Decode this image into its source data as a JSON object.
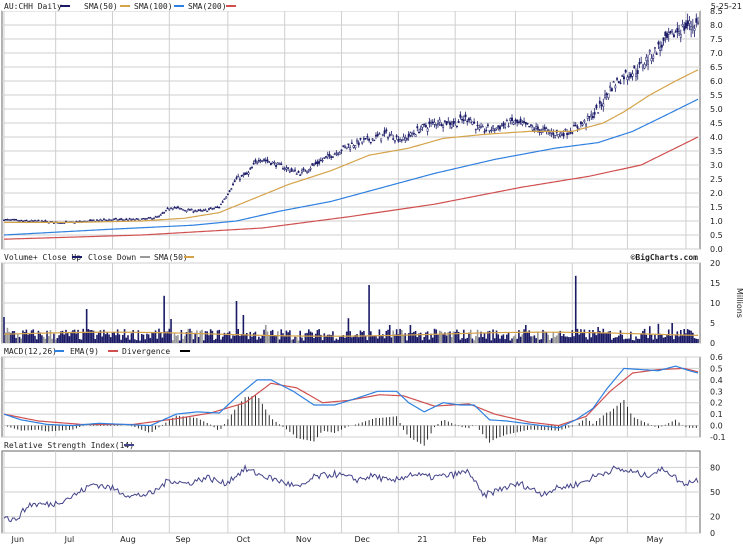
{
  "chart_data": [
    {
      "type": "line",
      "panel": "price",
      "title": "AU:CHH Daily",
      "legend": [
        {
          "name": "AU:CHH Daily",
          "color": "#1a1a66"
        },
        {
          "name": "SMA(50)",
          "color": "#d4a349"
        },
        {
          "name": "SMA(100)",
          "color": "#2f80e0"
        },
        {
          "name": "SMA(200)",
          "color": "#d05050"
        }
      ],
      "date_label": "5-25-21",
      "logo": "©BigCharts.com",
      "ylim": [
        0,
        8.5
      ],
      "yticks": [
        "0.0",
        "0.5",
        "1.0",
        "1.5",
        "2.0",
        "2.5",
        "3.0",
        "3.5",
        "4.0",
        "4.5",
        "5.0",
        "5.5",
        "6.0",
        "6.5",
        "7.0",
        "7.5",
        "8.0",
        "8.5"
      ],
      "x_months": [
        "Jun",
        "Jul",
        "Aug",
        "Sep",
        "Oct",
        "Nov",
        "Dec",
        "21",
        "Feb",
        "Mar",
        "Apr",
        "May"
      ],
      "price_anchors": [
        [
          0,
          1.05
        ],
        [
          10,
          1.0
        ],
        [
          20,
          1.0
        ],
        [
          30,
          0.95
        ],
        [
          40,
          0.95
        ],
        [
          50,
          1.0
        ],
        [
          60,
          1.05
        ],
        [
          70,
          1.05
        ],
        [
          80,
          1.05
        ],
        [
          90,
          1.15
        ],
        [
          97,
          1.5
        ],
        [
          105,
          1.4
        ],
        [
          115,
          1.35
        ],
        [
          125,
          1.5
        ],
        [
          135,
          2.5
        ],
        [
          142,
          2.7
        ],
        [
          148,
          3.25
        ],
        [
          155,
          3.1
        ],
        [
          163,
          2.9
        ],
        [
          172,
          2.7
        ],
        [
          180,
          3.0
        ],
        [
          190,
          3.35
        ],
        [
          200,
          3.7
        ],
        [
          212,
          3.9
        ],
        [
          222,
          4.1
        ],
        [
          232,
          3.9
        ],
        [
          242,
          4.3
        ],
        [
          252,
          4.55
        ],
        [
          262,
          4.5
        ],
        [
          270,
          4.7
        ],
        [
          276,
          4.25
        ],
        [
          285,
          4.3
        ],
        [
          295,
          4.55
        ],
        [
          305,
          4.35
        ],
        [
          315,
          4.2
        ],
        [
          322,
          4.1
        ],
        [
          330,
          4.25
        ],
        [
          338,
          4.55
        ],
        [
          346,
          5.05
        ],
        [
          352,
          5.75
        ],
        [
          360,
          6.2
        ],
        [
          368,
          6.4
        ],
        [
          375,
          6.9
        ],
        [
          383,
          7.35
        ],
        [
          391,
          7.8
        ],
        [
          398,
          8.0
        ],
        [
          403,
          8.05
        ]
      ],
      "sma50_anchors": [
        [
          0,
          0.95
        ],
        [
          40,
          0.95
        ],
        [
          80,
          1.0
        ],
        [
          105,
          1.1
        ],
        [
          125,
          1.3
        ],
        [
          145,
          1.8
        ],
        [
          165,
          2.3
        ],
        [
          190,
          2.8
        ],
        [
          212,
          3.35
        ],
        [
          235,
          3.6
        ],
        [
          255,
          3.95
        ],
        [
          280,
          4.1
        ],
        [
          305,
          4.2
        ],
        [
          330,
          4.2
        ],
        [
          348,
          4.5
        ],
        [
          360,
          4.9
        ],
        [
          375,
          5.5
        ],
        [
          390,
          6.0
        ],
        [
          403,
          6.4
        ]
      ],
      "sma100_anchors": [
        [
          0,
          0.5
        ],
        [
          60,
          0.7
        ],
        [
          110,
          0.85
        ],
        [
          135,
          1.0
        ],
        [
          160,
          1.35
        ],
        [
          190,
          1.7
        ],
        [
          220,
          2.2
        ],
        [
          250,
          2.7
        ],
        [
          285,
          3.2
        ],
        [
          320,
          3.6
        ],
        [
          345,
          3.8
        ],
        [
          365,
          4.2
        ],
        [
          385,
          4.8
        ],
        [
          403,
          5.35
        ]
      ],
      "sma200_anchors": [
        [
          0,
          0.35
        ],
        [
          80,
          0.5
        ],
        [
          150,
          0.75
        ],
        [
          200,
          1.15
        ],
        [
          250,
          1.6
        ],
        [
          300,
          2.2
        ],
        [
          340,
          2.6
        ],
        [
          370,
          3.0
        ],
        [
          403,
          4.0
        ]
      ]
    },
    {
      "type": "bar",
      "panel": "volume",
      "legend": [
        {
          "name": "Volume+ Close Up",
          "color": "#1a1a66"
        },
        {
          "name": "Close Down",
          "color": "#999999"
        },
        {
          "name": "SMA(50)",
          "color": "#d4a349"
        }
      ],
      "ylabel": "Millions",
      "ylim": [
        0,
        20
      ],
      "yticks": [
        "0",
        "5",
        "10",
        "15",
        "20"
      ],
      "spikes": [
        [
          0,
          6.5
        ],
        [
          2,
          3.8
        ],
        [
          48,
          8.5
        ],
        [
          93,
          11.8
        ],
        [
          97,
          6
        ],
        [
          135,
          10.5
        ],
        [
          139,
          7
        ],
        [
          152,
          4.5
        ],
        [
          200,
          6.2
        ],
        [
          212,
          14.5
        ],
        [
          224,
          4.5
        ],
        [
          236,
          4.5
        ],
        [
          303,
          4.5
        ],
        [
          332,
          16.8
        ],
        [
          345,
          4
        ],
        [
          375,
          4.2
        ],
        [
          380,
          4.8
        ],
        [
          388,
          5
        ],
        [
          395,
          3.5
        ]
      ],
      "sma50": 2.2
    },
    {
      "type": "line",
      "panel": "macd",
      "legend": [
        {
          "name": "MACD(12,26)",
          "color": "#2f80e0"
        },
        {
          "name": "EMA(9)",
          "color": "#d05050"
        },
        {
          "name": "Divergence",
          "color": "#000000"
        }
      ],
      "ylim": [
        -0.1,
        0.6
      ],
      "yticks": [
        "-0.1",
        "0.0",
        "0.1",
        "0.2",
        "0.3",
        "0.4",
        "0.5",
        "0.6"
      ],
      "macd_anchors": [
        [
          0,
          0.1
        ],
        [
          10,
          0.05
        ],
        [
          25,
          0.01
        ],
        [
          40,
          0.0
        ],
        [
          55,
          0.02
        ],
        [
          70,
          0.01
        ],
        [
          85,
          0.0
        ],
        [
          100,
          0.1
        ],
        [
          112,
          0.12
        ],
        [
          125,
          0.11
        ],
        [
          135,
          0.25
        ],
        [
          147,
          0.4
        ],
        [
          155,
          0.4
        ],
        [
          168,
          0.3
        ],
        [
          180,
          0.18
        ],
        [
          192,
          0.18
        ],
        [
          205,
          0.24
        ],
        [
          217,
          0.3
        ],
        [
          228,
          0.3
        ],
        [
          235,
          0.2
        ],
        [
          244,
          0.12
        ],
        [
          255,
          0.2
        ],
        [
          265,
          0.18
        ],
        [
          273,
          0.18
        ],
        [
          282,
          0.05
        ],
        [
          292,
          0.04
        ],
        [
          302,
          0.02
        ],
        [
          312,
          0.0
        ],
        [
          322,
          -0.02
        ],
        [
          332,
          0.05
        ],
        [
          342,
          0.15
        ],
        [
          350,
          0.32
        ],
        [
          360,
          0.5
        ],
        [
          370,
          0.49
        ],
        [
          380,
          0.48
        ],
        [
          390,
          0.52
        ],
        [
          398,
          0.48
        ],
        [
          403,
          0.46
        ]
      ],
      "ema_anchors": [
        [
          0,
          0.1
        ],
        [
          20,
          0.04
        ],
        [
          45,
          0.01
        ],
        [
          75,
          0.01
        ],
        [
          100,
          0.06
        ],
        [
          120,
          0.11
        ],
        [
          140,
          0.2
        ],
        [
          155,
          0.37
        ],
        [
          170,
          0.33
        ],
        [
          185,
          0.2
        ],
        [
          200,
          0.22
        ],
        [
          218,
          0.27
        ],
        [
          232,
          0.26
        ],
        [
          250,
          0.17
        ],
        [
          270,
          0.19
        ],
        [
          285,
          0.1
        ],
        [
          305,
          0.03
        ],
        [
          322,
          0.0
        ],
        [
          338,
          0.08
        ],
        [
          352,
          0.3
        ],
        [
          365,
          0.46
        ],
        [
          380,
          0.49
        ],
        [
          395,
          0.5
        ],
        [
          403,
          0.47
        ]
      ]
    },
    {
      "type": "line",
      "panel": "rsi",
      "title": "Relative Strength Index(14)",
      "ylim": [
        0,
        100
      ],
      "yticks": [
        "0",
        "20",
        "50",
        "80"
      ],
      "rsi_anchors": [
        [
          0,
          20
        ],
        [
          6,
          15
        ],
        [
          15,
          35
        ],
        [
          28,
          35
        ],
        [
          40,
          45
        ],
        [
          52,
          60
        ],
        [
          62,
          55
        ],
        [
          74,
          45
        ],
        [
          86,
          48
        ],
        [
          96,
          65
        ],
        [
          106,
          60
        ],
        [
          118,
          68
        ],
        [
          128,
          60
        ],
        [
          140,
          78
        ],
        [
          150,
          70
        ],
        [
          162,
          62
        ],
        [
          172,
          55
        ],
        [
          180,
          68
        ],
        [
          192,
          72
        ],
        [
          205,
          65
        ],
        [
          215,
          70
        ],
        [
          225,
          62
        ],
        [
          236,
          72
        ],
        [
          248,
          68
        ],
        [
          258,
          70
        ],
        [
          270,
          75
        ],
        [
          278,
          45
        ],
        [
          290,
          55
        ],
        [
          300,
          60
        ],
        [
          312,
          48
        ],
        [
          322,
          55
        ],
        [
          334,
          60
        ],
        [
          344,
          70
        ],
        [
          354,
          78
        ],
        [
          364,
          75
        ],
        [
          372,
          70
        ],
        [
          384,
          78
        ],
        [
          394,
          60
        ],
        [
          403,
          65
        ]
      ]
    }
  ]
}
